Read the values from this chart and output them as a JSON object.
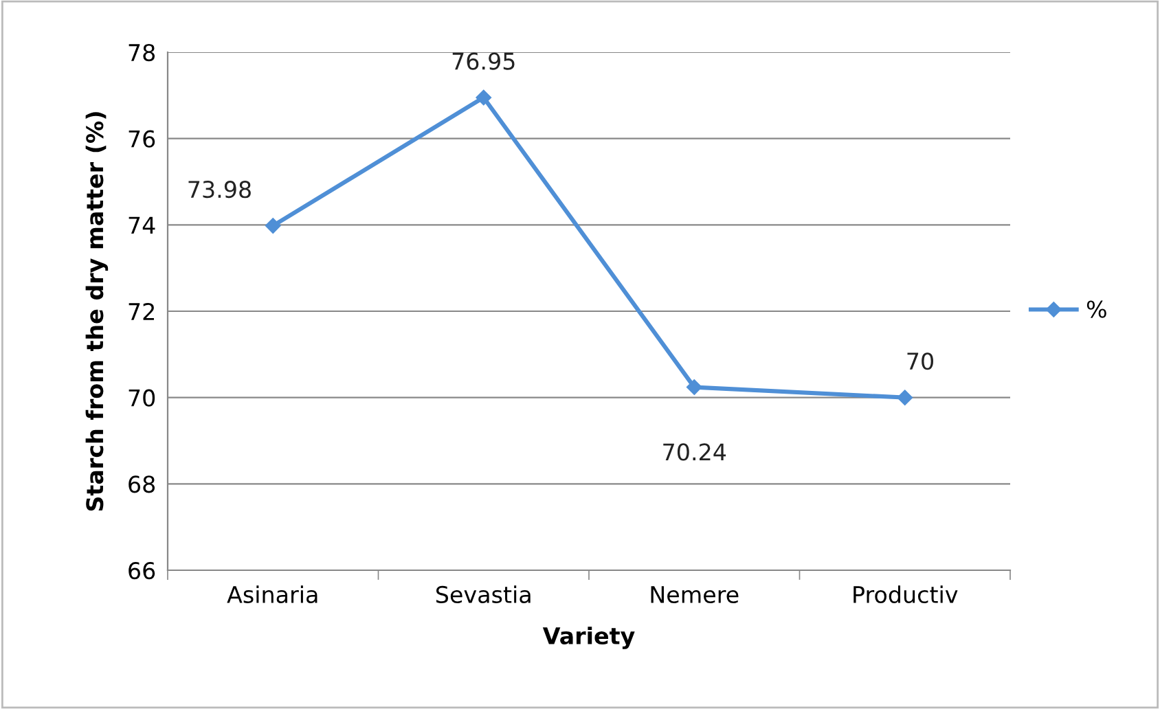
{
  "chart_data": {
    "type": "line",
    "xlabel": "Variety",
    "ylabel": "Starch from the dry matter (%)",
    "categories": [
      "Asinaria",
      "Sevastia",
      "Nemere",
      "Productiv"
    ],
    "series": [
      {
        "name": "%",
        "color": "#4f8fd6",
        "values": [
          73.98,
          76.95,
          70.24,
          70
        ]
      }
    ],
    "ylim": [
      66,
      78
    ],
    "yticks": [
      66,
      68,
      70,
      72,
      74,
      76,
      78
    ],
    "grid": "y",
    "legend": "right",
    "marker": "diamond",
    "line_style": "solid",
    "data_labels": true
  }
}
